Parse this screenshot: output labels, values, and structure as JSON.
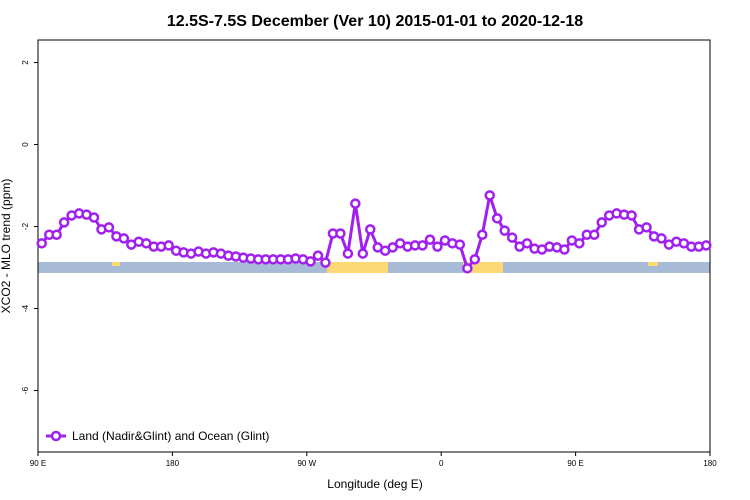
{
  "chart_data": {
    "type": "line",
    "title": "12.5S-7.5S December (Ver 10)   2015-01-01 to 2020-12-18",
    "x_label": "Longitude (deg E)",
    "y_label": "XCO2 - MLO trend (ppm)",
    "xlim": [
      90,
      540
    ],
    "ylim": [
      -7.5,
      2.55
    ],
    "xticks": [
      {
        "value": 90,
        "label": "90 E"
      },
      {
        "value": 180,
        "label": "180"
      },
      {
        "value": 270,
        "label": "90 W"
      },
      {
        "value": 360,
        "label": "0"
      },
      {
        "value": 450,
        "label": "90 E"
      },
      {
        "value": 540,
        "label": "180"
      }
    ],
    "yticks": [
      -6,
      -4,
      -2,
      0,
      2
    ],
    "legend": "bottom-left",
    "series": [
      {
        "name": "Land (Nadir&Glint) and Ocean (Glint)",
        "color": "#a020f0",
        "x": [
          92.5,
          97.5,
          102.5,
          107.5,
          112.5,
          117.5,
          122.5,
          127.5,
          132.5,
          137.5,
          142.5,
          147.5,
          152.5,
          157.5,
          162.5,
          167.5,
          172.5,
          177.5,
          182.5,
          187.5,
          192.5,
          197.5,
          202.5,
          207.5,
          212.5,
          217.5,
          222.5,
          227.5,
          232.5,
          237.5,
          242.5,
          247.5,
          252.5,
          257.5,
          262.5,
          267.5,
          272.5,
          277.5,
          282.5,
          287.5,
          292.5,
          297.5,
          302.5,
          307.5,
          312.5,
          317.5,
          322.5,
          327.5,
          332.5,
          337.5,
          342.5,
          347.5,
          352.5,
          357.5,
          362.5,
          367.5,
          372.5,
          377.5,
          382.5,
          387.5,
          392.5,
          397.5,
          402.5,
          407.5,
          412.5,
          417.5,
          422.5,
          427.5,
          432.5,
          437.5,
          442.5,
          447.5,
          452.5,
          457.5,
          462.5,
          467.5,
          472.5,
          477.5,
          482.5,
          487.5,
          492.5,
          497.5,
          502.5,
          507.5,
          512.5,
          517.5,
          522.5,
          527.5,
          532.5,
          537.5
        ],
        "values": [
          -2.41,
          -2.2,
          -2.2,
          -1.9,
          -1.73,
          -1.68,
          -1.71,
          -1.78,
          -2.07,
          -2.02,
          -2.24,
          -2.29,
          -2.44,
          -2.37,
          -2.41,
          -2.49,
          -2.49,
          -2.46,
          -2.59,
          -2.63,
          -2.66,
          -2.61,
          -2.66,
          -2.63,
          -2.66,
          -2.71,
          -2.73,
          -2.76,
          -2.78,
          -2.8,
          -2.8,
          -2.8,
          -2.8,
          -2.8,
          -2.78,
          -2.8,
          -2.85,
          -2.71,
          -2.88,
          -2.17,
          -2.17,
          -2.66,
          -1.44,
          -2.66,
          -2.07,
          -2.51,
          -2.59,
          -2.51,
          -2.41,
          -2.49,
          -2.46,
          -2.46,
          -2.32,
          -2.49,
          -2.34,
          -2.41,
          -2.44,
          -3.02,
          -2.8,
          -2.2,
          -1.24,
          -1.8,
          -2.1,
          -2.27,
          -2.49,
          -2.41,
          -2.54,
          -2.56,
          -2.49,
          -2.51,
          -2.56,
          -2.34,
          -2.41,
          -2.2,
          -2.2,
          -1.9,
          -1.73,
          -1.68,
          -1.71,
          -1.73,
          -2.07,
          -2.02,
          -2.24,
          -2.29,
          -2.44,
          -2.37,
          -2.41,
          -2.49,
          -2.49,
          -2.46
        ]
      }
    ]
  }
}
